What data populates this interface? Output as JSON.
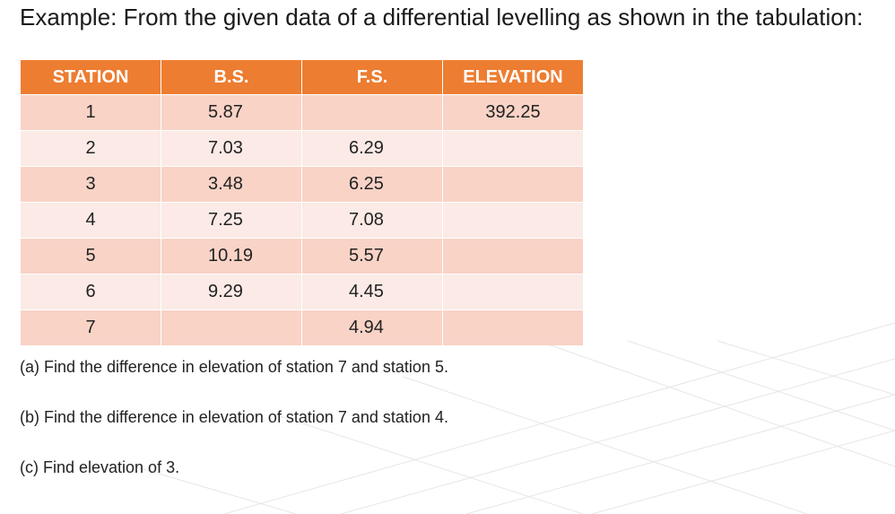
{
  "header": {
    "title": "Example: From the given data of a differential levelling as shown in the tabulation:"
  },
  "table": {
    "columns": [
      "STATION",
      "B.S.",
      "F.S.",
      "ELEVATION"
    ],
    "rows": [
      [
        1,
        5.87,
        null,
        392.25
      ],
      [
        2,
        7.03,
        6.29,
        null
      ],
      [
        3,
        3.48,
        6.25,
        null
      ],
      [
        4,
        7.25,
        7.08,
        null
      ],
      [
        5,
        10.19,
        5.57,
        null
      ],
      [
        6,
        9.29,
        4.45,
        null
      ],
      [
        7,
        null,
        4.94,
        null
      ]
    ]
  },
  "questions": [
    "(a) Find the difference in elevation of station 7 and station 5.",
    "(b) Find the difference in elevation of station 7 and station 4.",
    "(c) Find elevation of 3."
  ]
}
